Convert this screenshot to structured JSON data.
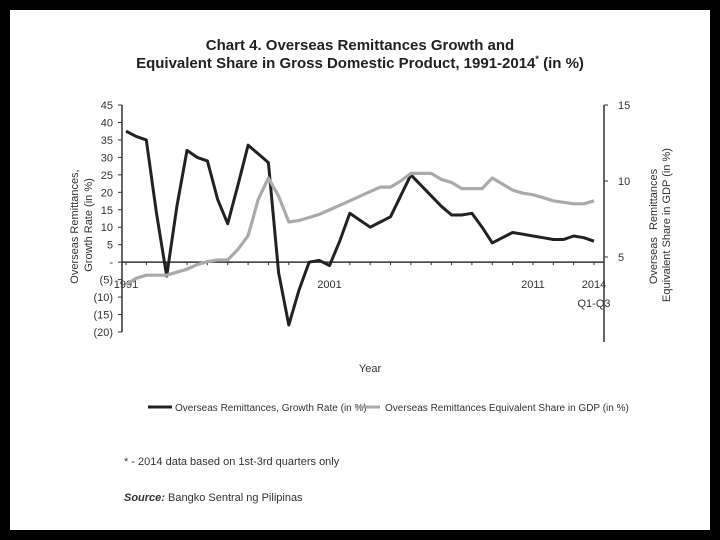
{
  "chart_data": {
    "type": "line",
    "title": "Chart 4. Overseas Remittances Growth and",
    "subtitle": "Equivalent Share in Gross Domestic Product, 1991-2014",
    "subtitle_mark": "*",
    "subtitle_unit": "(in %)",
    "xlabel": "Year",
    "ylabel_left": "Overseas Remittances, Growth Rate (in %)",
    "ylabel_left_line1": "Overseas Remittances,",
    "ylabel_left_line2": "Growth Rate (in %)",
    "ylabel_right_line1": "Overseas",
    "ylabel_right_line2": "Remittances",
    "ylabel_right_line3": "Equivalent Share in GDP (in %)",
    "ylim_left": [
      -20,
      45
    ],
    "ylim_right": [
      0,
      15
    ],
    "left_ticks": [
      {
        "v": 45,
        "l": "45"
      },
      {
        "v": 40,
        "l": "40"
      },
      {
        "v": 35,
        "l": "35"
      },
      {
        "v": 30,
        "l": "30"
      },
      {
        "v": 25,
        "l": "25"
      },
      {
        "v": 20,
        "l": "20"
      },
      {
        "v": 15,
        "l": "15"
      },
      {
        "v": 10,
        "l": "10"
      },
      {
        "v": 5,
        "l": "5"
      },
      {
        "v": 0,
        "l": "-"
      },
      {
        "v": -5,
        "l": "(5)"
      },
      {
        "v": -10,
        "l": "(10)"
      },
      {
        "v": -15,
        "l": "(15)"
      },
      {
        "v": -20,
        "l": "(20)"
      }
    ],
    "right_ticks": [
      {
        "v": 15,
        "l": "15"
      },
      {
        "v": 10,
        "l": "10"
      },
      {
        "v": 5,
        "l": "5"
      }
    ],
    "x_tick_labels": [
      {
        "x": 1991,
        "l": "1991"
      },
      {
        "x": 2001,
        "l": "2001"
      },
      {
        "x": 2011,
        "l": "2011"
      },
      {
        "x": 2014,
        "l": "2014"
      }
    ],
    "x_extra_label": {
      "x": 2014,
      "l": "Q1-Q3"
    },
    "x": [
      1991,
      1991.5,
      1992,
      1992.5,
      1993,
      1993.5,
      1994,
      1994.5,
      1995,
      1995.5,
      1996,
      1996.5,
      1997,
      1997.5,
      1998,
      1998.5,
      1999,
      1999.5,
      2000,
      2000.5,
      2001,
      2001.5,
      2002,
      2002.5,
      2003,
      2003.5,
      2004,
      2004.5,
      2005,
      2005.5,
      2006,
      2006.5,
      2007,
      2007.5,
      2008,
      2008.5,
      2009,
      2009.5,
      2010,
      2010.5,
      2011,
      2011.5,
      2012,
      2012.5,
      2013,
      2013.5,
      2014
    ],
    "series": [
      {
        "name": "Overseas Remittances, Growth Rate (in %)",
        "axis": "left",
        "color": "#222222",
        "values": [
          37.5,
          36,
          35,
          14,
          -4,
          16,
          32,
          30,
          29,
          18,
          11,
          22,
          33.5,
          31,
          28.5,
          -3,
          -18,
          -8,
          0,
          0.5,
          -1,
          6,
          14,
          12,
          10,
          11.5,
          13,
          19,
          25,
          22,
          19,
          16,
          13.5,
          13.5,
          14,
          10,
          5.5,
          7,
          8.5,
          8,
          7.5,
          7,
          6.5,
          6.5,
          7.5,
          7,
          6
        ]
      },
      {
        "name": "Overseas Remittances Equivalent Share in GDP (in %)",
        "axis": "right",
        "color": "#aaaaaa",
        "values": [
          3.2,
          3.6,
          3.8,
          3.8,
          3.8,
          4.0,
          4.2,
          4.5,
          4.7,
          4.8,
          4.8,
          5.5,
          6.4,
          8.8,
          10.2,
          9.0,
          7.3,
          7.4,
          7.6,
          7.8,
          8.1,
          8.4,
          8.7,
          9.0,
          9.3,
          9.6,
          9.6,
          10.0,
          10.5,
          10.5,
          10.5,
          10.1,
          9.9,
          9.5,
          9.5,
          9.5,
          10.2,
          9.8,
          9.4,
          9.2,
          9.1,
          8.9,
          8.7,
          8.6,
          8.5,
          8.5,
          8.7
        ]
      }
    ],
    "legend": [
      {
        "label": "Overseas Remittances, Growth Rate (in %)",
        "color": "#222222"
      },
      {
        "label": "Overseas Remittances Equivalent Share in GDP (in %)",
        "color": "#aaaaaa"
      }
    ],
    "legend_position": "bottom"
  },
  "footnote": "* - 2014 data based on 1st-3rd quarters only",
  "source_label": "Source:",
  "source_text": "Bangko Sentral ng Pilipinas"
}
